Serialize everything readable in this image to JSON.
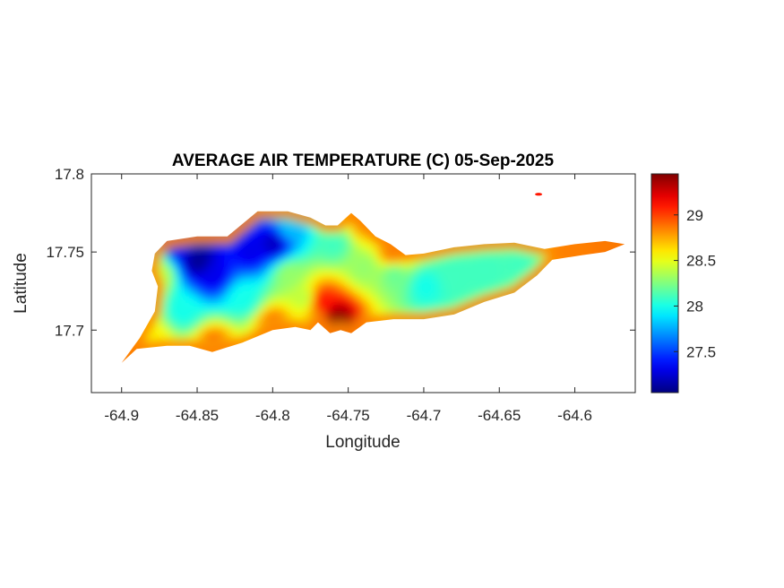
{
  "chart_data": {
    "type": "heatmap",
    "title": "AVERAGE AIR TEMPERATURE (C) 05-Sep-2025",
    "xlabel": "Longitude",
    "ylabel": "Latitude",
    "xlim": [
      -64.92,
      -64.56
    ],
    "ylim": [
      17.66,
      17.8
    ],
    "x_ticks": [
      -64.9,
      -64.85,
      -64.8,
      -64.75,
      -64.7,
      -64.65,
      -64.6
    ],
    "x_tick_labels": [
      "-64.9",
      "-64.85",
      "-64.8",
      "-64.75",
      "-64.7",
      "-64.65",
      "-64.6"
    ],
    "y_ticks": [
      17.7,
      17.75,
      17.8
    ],
    "y_tick_labels": [
      "17.7",
      "17.75",
      "17.8"
    ],
    "colorbar": {
      "range": [
        27.05,
        29.45
      ],
      "ticks": [
        27.5,
        28,
        28.5,
        29
      ],
      "tick_labels": [
        "27.5",
        "28",
        "28.5",
        "29"
      ],
      "colormap": "jet"
    },
    "grid": false,
    "island_outline": [
      [
        -64.9,
        17.679
      ],
      [
        -64.89,
        17.688
      ],
      [
        -64.87,
        17.69
      ],
      [
        -64.855,
        17.69
      ],
      [
        -64.84,
        17.686
      ],
      [
        -64.82,
        17.692
      ],
      [
        -64.8,
        17.7
      ],
      [
        -64.785,
        17.702
      ],
      [
        -64.775,
        17.7
      ],
      [
        -64.77,
        17.705
      ],
      [
        -64.762,
        17.698
      ],
      [
        -64.755,
        17.7
      ],
      [
        -64.748,
        17.698
      ],
      [
        -64.738,
        17.705
      ],
      [
        -64.72,
        17.707
      ],
      [
        -64.7,
        17.707
      ],
      [
        -64.68,
        17.71
      ],
      [
        -64.66,
        17.718
      ],
      [
        -64.64,
        17.724
      ],
      [
        -64.625,
        17.735
      ],
      [
        -64.615,
        17.745
      ],
      [
        -64.595,
        17.748
      ],
      [
        -64.58,
        17.75
      ],
      [
        -64.567,
        17.755
      ],
      [
        -64.58,
        17.757
      ],
      [
        -64.6,
        17.755
      ],
      [
        -64.62,
        17.752
      ],
      [
        -64.64,
        17.756
      ],
      [
        -64.66,
        17.755
      ],
      [
        -64.68,
        17.753
      ],
      [
        -64.7,
        17.749
      ],
      [
        -64.712,
        17.748
      ],
      [
        -64.722,
        17.755
      ],
      [
        -64.732,
        17.76
      ],
      [
        -64.742,
        17.77
      ],
      [
        -64.748,
        17.775
      ],
      [
        -64.757,
        17.767
      ],
      [
        -64.765,
        17.767
      ],
      [
        -64.775,
        17.772
      ],
      [
        -64.79,
        17.776
      ],
      [
        -64.81,
        17.776
      ],
      [
        -64.83,
        17.76
      ],
      [
        -64.85,
        17.76
      ],
      [
        -64.87,
        17.757
      ],
      [
        -64.878,
        17.749
      ],
      [
        -64.88,
        17.738
      ],
      [
        -64.876,
        17.728
      ],
      [
        -64.878,
        17.712
      ],
      [
        -64.888,
        17.695
      ],
      [
        -64.9,
        17.679
      ]
    ],
    "islet": {
      "lon": -64.624,
      "lat": 17.787,
      "value": 29.1
    },
    "temperature_samples": [
      {
        "lon": -64.85,
        "lat": 17.744,
        "value": 27.1
      },
      {
        "lon": -64.84,
        "lat": 17.735,
        "value": 27.3
      },
      {
        "lon": -64.862,
        "lat": 17.756,
        "value": 27.3
      },
      {
        "lon": -64.815,
        "lat": 17.75,
        "value": 27.3
      },
      {
        "lon": -64.8,
        "lat": 17.755,
        "value": 27.2
      },
      {
        "lon": -64.79,
        "lat": 17.765,
        "value": 27.8
      },
      {
        "lon": -64.76,
        "lat": 17.755,
        "value": 28.1
      },
      {
        "lon": -64.86,
        "lat": 17.712,
        "value": 28.0
      },
      {
        "lon": -64.82,
        "lat": 17.72,
        "value": 28.0
      },
      {
        "lon": -64.79,
        "lat": 17.735,
        "value": 28.3
      },
      {
        "lon": -64.78,
        "lat": 17.72,
        "value": 28.4
      },
      {
        "lon": -64.768,
        "lat": 17.718,
        "value": 29.1
      },
      {
        "lon": -64.758,
        "lat": 17.708,
        "value": 29.4
      },
      {
        "lon": -64.74,
        "lat": 17.74,
        "value": 28.3
      },
      {
        "lon": -64.72,
        "lat": 17.735,
        "value": 28.2
      },
      {
        "lon": -64.7,
        "lat": 17.728,
        "value": 28.0
      },
      {
        "lon": -64.68,
        "lat": 17.735,
        "value": 28.1
      },
      {
        "lon": -64.66,
        "lat": 17.738,
        "value": 28.1
      },
      {
        "lon": -64.635,
        "lat": 17.742,
        "value": 28.1
      },
      {
        "lon": -64.72,
        "lat": 17.75,
        "value": 29.0
      },
      {
        "lon": -64.6,
        "lat": 17.751,
        "value": 29.0
      },
      {
        "lon": -64.58,
        "lat": 17.754,
        "value": 29.2
      },
      {
        "lon": -64.895,
        "lat": 17.683,
        "value": 29.0
      },
      {
        "lon": -64.88,
        "lat": 17.693,
        "value": 28.6
      },
      {
        "lon": -64.876,
        "lat": 17.735,
        "value": 28.4
      },
      {
        "lon": -64.74,
        "lat": 17.77,
        "value": 28.9
      },
      {
        "lon": -64.8,
        "lat": 17.703,
        "value": 28.9
      },
      {
        "lon": -64.84,
        "lat": 17.69,
        "value": 28.9
      }
    ]
  }
}
